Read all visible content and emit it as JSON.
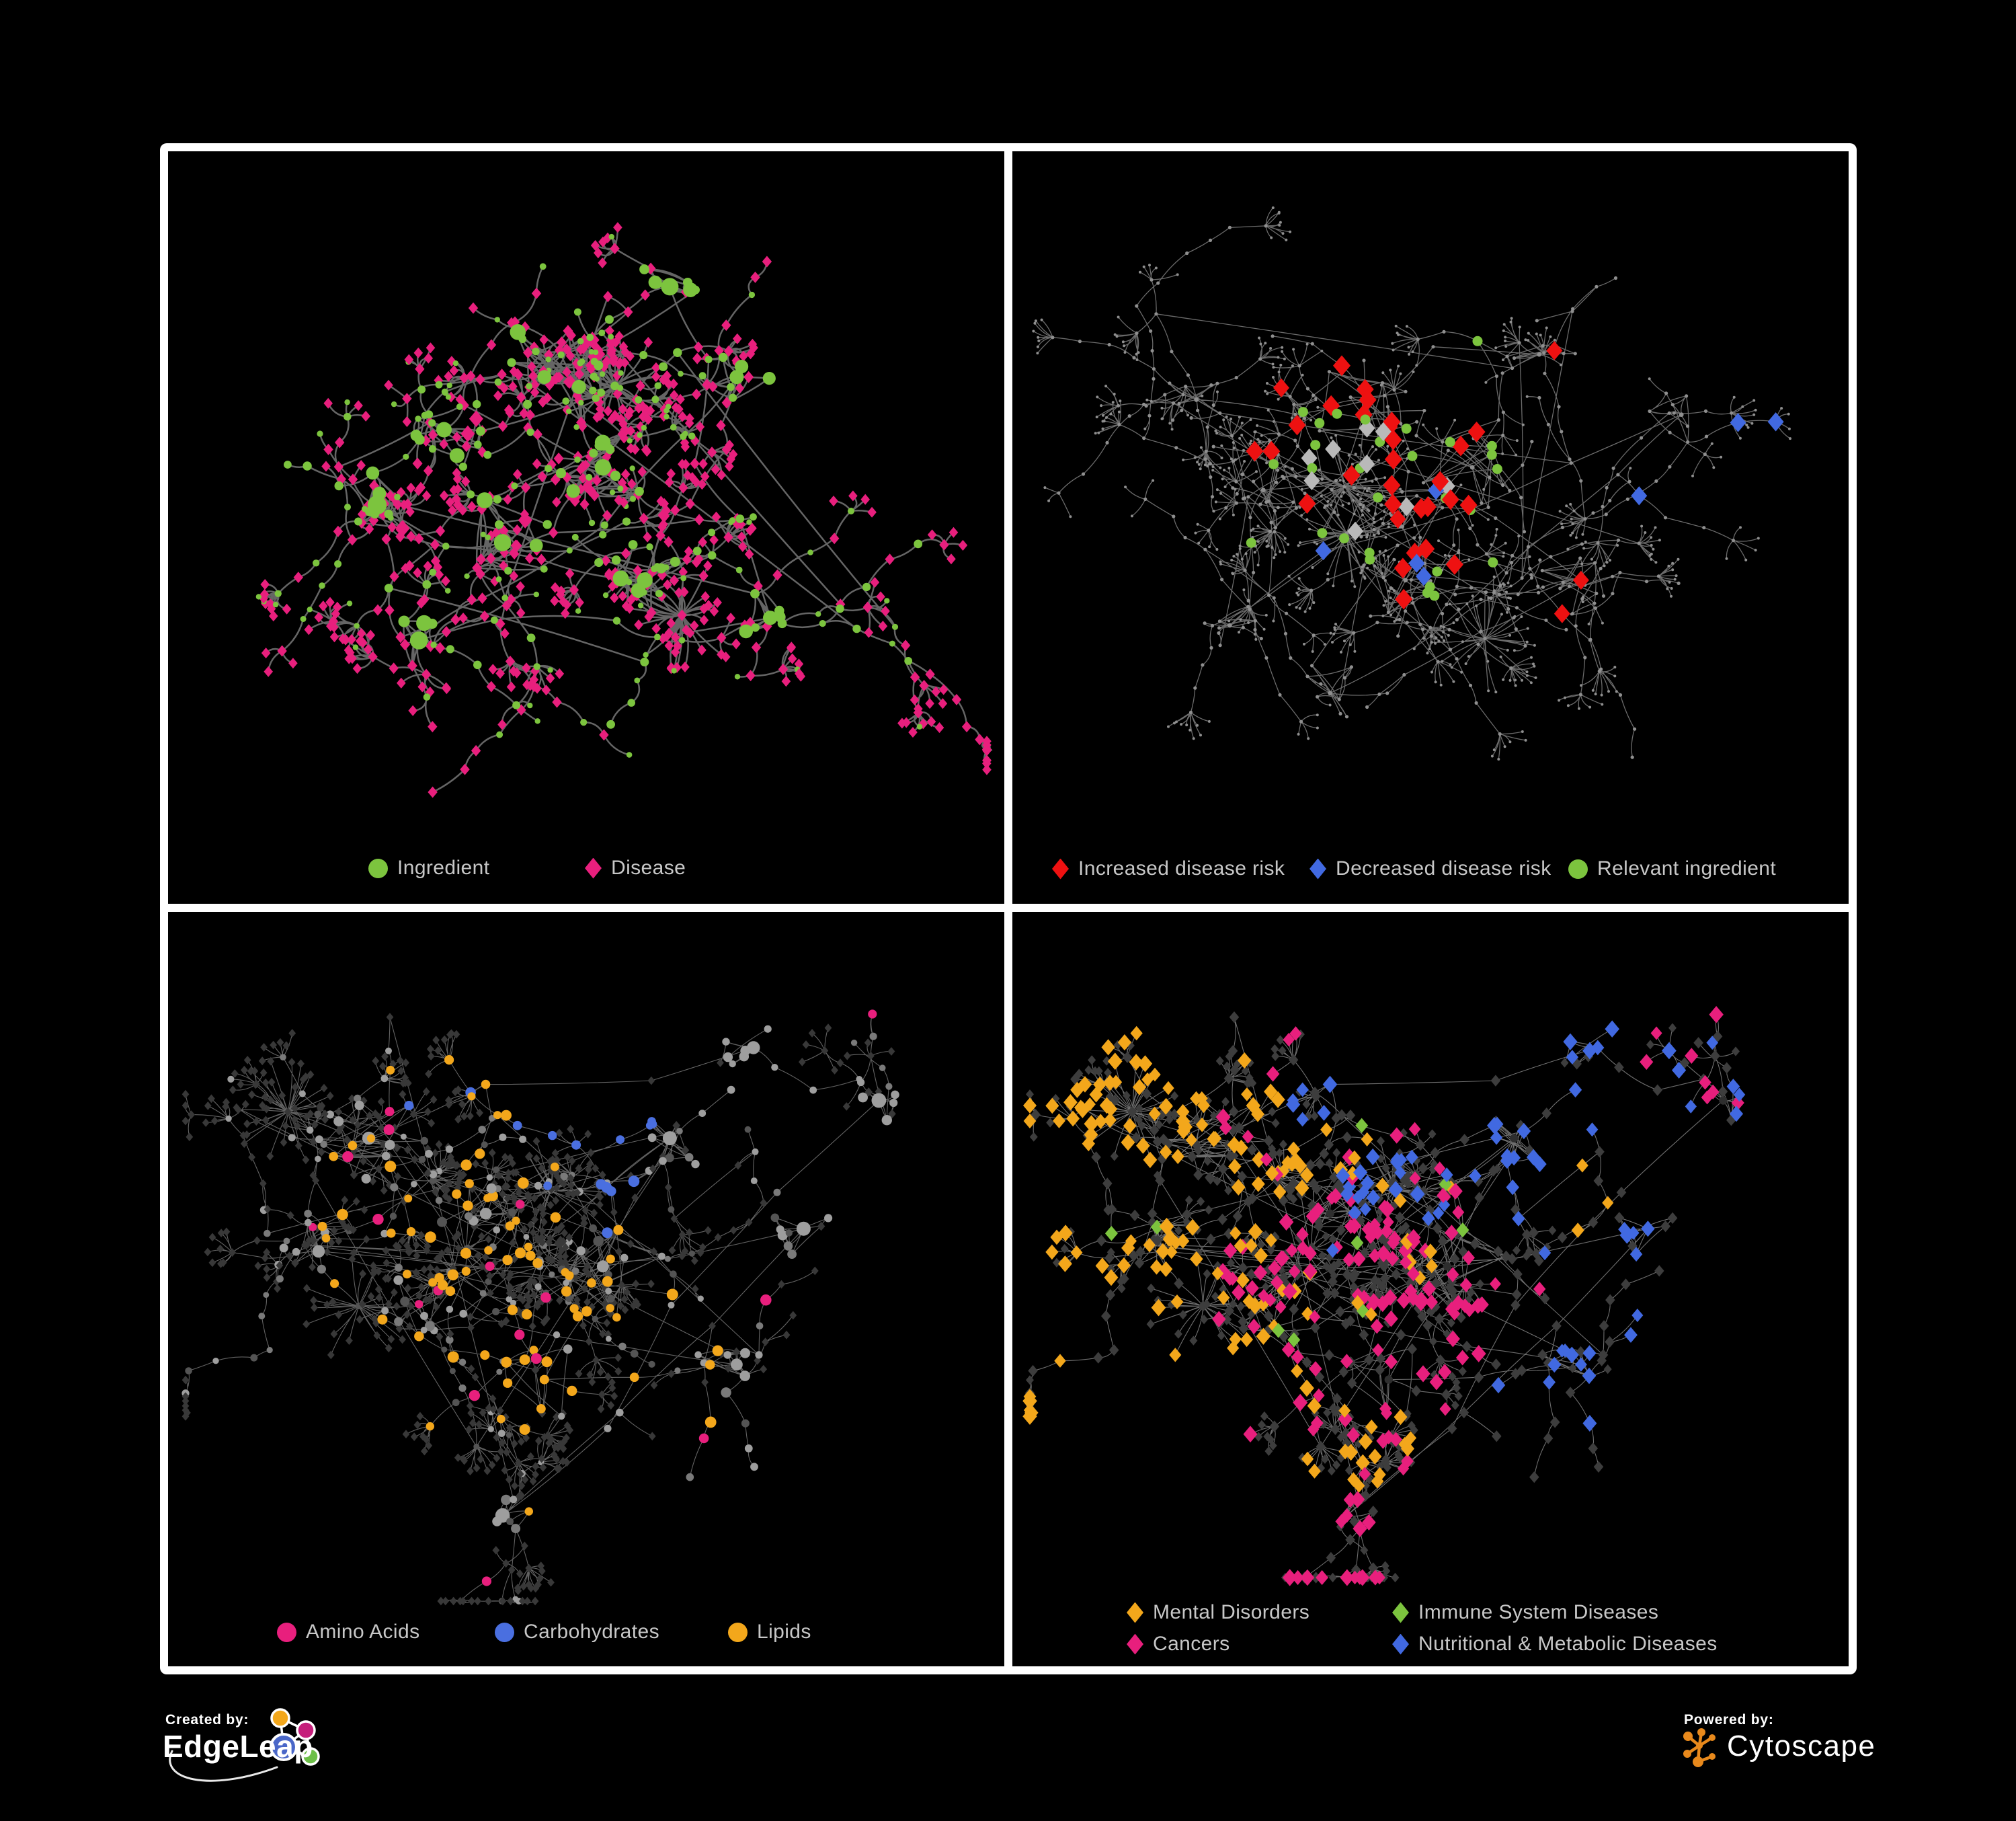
{
  "page": {
    "background": "#000000",
    "frame": "#ffffff",
    "legend_text_color": "#c7c7c7"
  },
  "panels": [
    {
      "name": "ingredient-disease-network",
      "legend": [
        {
          "shape": "circle",
          "color": "#7cc43e",
          "label": "Ingredient"
        },
        {
          "shape": "diamond",
          "color": "#e81f7d",
          "label": "Disease"
        }
      ],
      "net": {
        "preset": "tl",
        "kind": "bipartite",
        "edge": "#6a6a6a",
        "edge_width": 2.5,
        "edge_opacity": 0.95,
        "curve": 30,
        "max_y": 1020,
        "ingredient": "#7cc43e",
        "disease": "#e81f7d"
      }
    },
    {
      "name": "disease-risk-network",
      "legend": [
        {
          "shape": "diamond",
          "color": "#ee1111",
          "label": "Increased disease risk"
        },
        {
          "shape": "diamond",
          "color": "#4169e1",
          "label": "Decreased disease risk"
        },
        {
          "shape": "circle",
          "color": "#7cc43e",
          "label": "Relevant ingredient"
        }
      ],
      "net": {
        "preset": "tr",
        "kind": "base-highlight",
        "edge": "#7d7d7d",
        "edge_width": 1.3,
        "edge_opacity": 0.85,
        "curve": 14,
        "max_y": 1020,
        "base": "#8f8f8f",
        "highlights": [
          {
            "shape": "diamond",
            "color": "#ee1111",
            "count": 28,
            "bias": "center",
            "size": 13
          },
          {
            "shape": "diamond",
            "color": "#ee1111",
            "count": 5,
            "bias": "scatter",
            "size": 12
          },
          {
            "shape": "diamond",
            "color": "#4169e1",
            "count": 5,
            "bias": "scatter",
            "size": 12
          },
          {
            "shape": "diamond",
            "color": "#4169e1",
            "count": 2,
            "bias": "right-pair",
            "size": 12
          },
          {
            "shape": "diamond",
            "color": "#b9b9b9",
            "count": 9,
            "bias": "center",
            "size": 12
          },
          {
            "shape": "circle",
            "color": "#7cc43e",
            "count": 29,
            "bias": "center",
            "size": 7.5
          }
        ]
      }
    },
    {
      "name": "nutrient-classes-network",
      "legend": [
        {
          "shape": "circle",
          "color": "#e81f7d",
          "label": "Amino Acids"
        },
        {
          "shape": "circle",
          "color": "#4a6fe0",
          "label": "Carbohydrates"
        },
        {
          "shape": "circle",
          "color": "#f3a71b",
          "label": "Lipids"
        }
      ],
      "net": {
        "preset": "b",
        "kind": "nutrient",
        "edge": "#737373",
        "edge_width": 1.1,
        "edge_opacity": 0.85,
        "curve": 14,
        "max_y": 1025,
        "leaf_color": "#383838",
        "grays": [
          "#9e9e9e",
          "#7a7a7a",
          "#545454"
        ],
        "highlights": [
          {
            "color": "#f3a71b",
            "count": 80,
            "foci": [
              [
                0.38,
                0.22
              ],
              [
                0.33,
                0.45
              ],
              [
                0.48,
                0.63
              ]
            ]
          },
          {
            "color": "#4a6fe0",
            "count": 15,
            "foci": [
              [
                0.35,
                0.16
              ],
              [
                0.52,
                0.3
              ]
            ]
          },
          {
            "color": "#e81f7d",
            "count": 17,
            "foci": []
          }
        ]
      }
    },
    {
      "name": "disease-classes-network",
      "legend": [
        {
          "shape": "diamond",
          "color": "#f3a71b",
          "label": "Mental Disorders"
        },
        {
          "shape": "diamond",
          "color": "#7cc43e",
          "label": "Immune System Diseases"
        },
        {
          "shape": "diamond",
          "color": "#e81f7d",
          "label": "Cancers"
        },
        {
          "shape": "diamond",
          "color": "#4169e1",
          "label": "Nutritional & Metabolic Diseases"
        }
      ],
      "net": {
        "preset": "b",
        "kind": "theme",
        "edge": "#8a8a8a",
        "edge_width": 1.1,
        "edge_opacity": 0.8,
        "curve": 14,
        "max_y": 990,
        "dark": "#3d3d3d",
        "hub": "#2e2e2e",
        "theme_colors": {
          "amber": "#f3a71b",
          "pink": "#e81f7d",
          "blue": "#4169e1",
          "green": "#7cc43e"
        },
        "green_count": 9
      }
    }
  ],
  "presets": {
    "tl": {
      "seed": 31,
      "branches": 85,
      "fan": 0.6,
      "leaves": 36,
      "long": 10,
      "bursts": 2,
      "clusters": [
        [
          0.45,
          0.3,
          80,
          20
        ],
        [
          0.33,
          0.37,
          60,
          14
        ],
        [
          0.52,
          0.42,
          70,
          16
        ],
        [
          0.4,
          0.52,
          65,
          14
        ],
        [
          0.25,
          0.47,
          50,
          10
        ],
        [
          0.57,
          0.57,
          55,
          12
        ],
        [
          0.68,
          0.3,
          45,
          9
        ],
        [
          0.3,
          0.65,
          45,
          9
        ],
        [
          0.72,
          0.62,
          40,
          8
        ],
        [
          0.6,
          0.18,
          40,
          8
        ]
      ]
    },
    "tr": {
      "seed": 52,
      "branches": 100,
      "fan": 0.6,
      "leaves": 34,
      "long": 14,
      "bursts": 3,
      "clusters": [
        [
          0.42,
          0.35,
          75,
          16
        ],
        [
          0.55,
          0.42,
          70,
          14
        ],
        [
          0.3,
          0.45,
          55,
          11
        ],
        [
          0.47,
          0.57,
          60,
          12
        ],
        [
          0.63,
          0.27,
          45,
          9
        ],
        [
          0.22,
          0.33,
          45,
          9
        ],
        [
          0.68,
          0.57,
          50,
          10
        ],
        [
          0.38,
          0.72,
          45,
          9
        ],
        [
          0.8,
          0.35,
          40,
          7
        ],
        [
          0.26,
          0.63,
          40,
          8
        ]
      ]
    },
    "b": {
      "seed": 77,
      "branches": 105,
      "fan": 0.55,
      "leaves": 40,
      "long": 14,
      "bursts": 3,
      "clusters": [
        [
          0.24,
          0.3,
          80,
          20
        ],
        [
          0.38,
          0.4,
          70,
          15
        ],
        [
          0.52,
          0.47,
          75,
          16
        ],
        [
          0.3,
          0.52,
          55,
          11
        ],
        [
          0.6,
          0.3,
          50,
          10
        ],
        [
          0.45,
          0.62,
          55,
          11
        ],
        [
          0.68,
          0.6,
          50,
          10
        ],
        [
          0.18,
          0.45,
          45,
          9
        ],
        [
          0.76,
          0.42,
          40,
          8
        ],
        [
          0.4,
          0.8,
          40,
          8
        ],
        [
          0.85,
          0.25,
          35,
          6
        ],
        [
          0.7,
          0.18,
          35,
          6
        ]
      ]
    }
  },
  "footer": {
    "created_by": "Created by:",
    "brand_left": "EdgeLeap",
    "powered_by": "Powered by:",
    "brand_right": "Cytoscape",
    "edgeleap_palette": {
      "blue": "#4a67c8",
      "orange": "#f3a71b",
      "magenta": "#c51f7b",
      "green": "#6cbf47"
    },
    "cytoscape_orange": "#e8891c"
  }
}
